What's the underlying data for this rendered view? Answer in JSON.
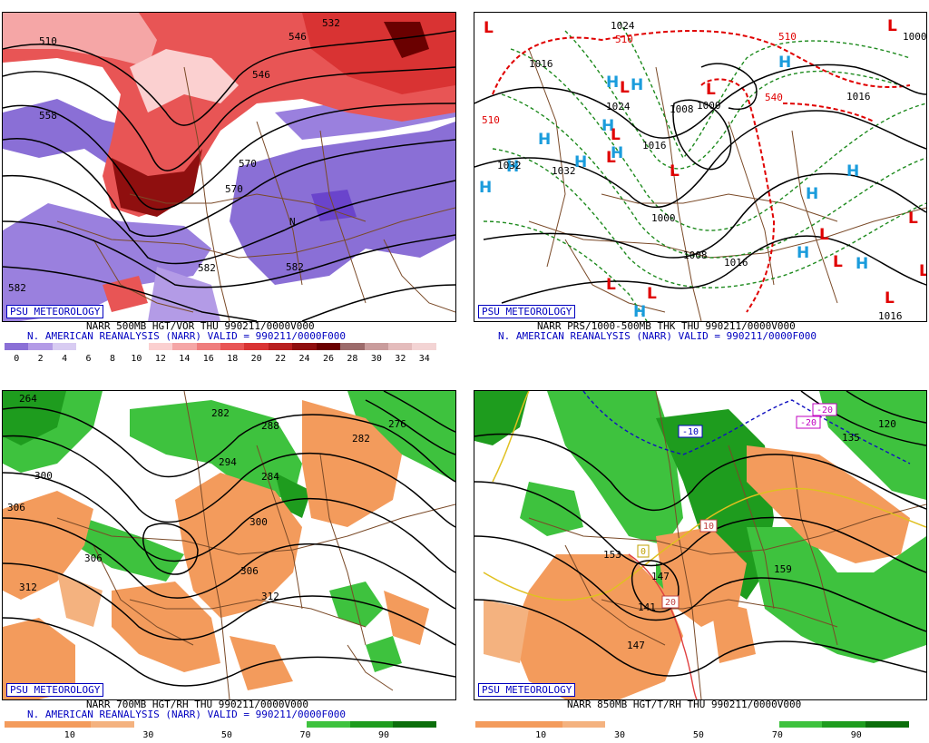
{
  "panels": [
    {
      "id": "vor500",
      "logo": "PSU METEOROLOGY",
      "caption1": "NARR 500MB HGT/VOR THU 990211/0000V000",
      "caption2": "N. AMERICAN REANALYSIS (NARR) VALID = 990211/0000F000",
      "colorbar": [
        "#8a6fd6",
        "#b39be6",
        "#d8ccf2",
        "#ffffff",
        "#ffffff",
        "#ffffff",
        "#fbd0d0",
        "#f5a6a6",
        "#ef7d7d",
        "#e85555",
        "#d93333",
        "#b81f1f",
        "#8f0f0f",
        "#6a0000",
        "#9c6b6b",
        "#c99c9c",
        "#e4bcbc",
        "#f3d4d4"
      ],
      "ticks": [
        "0",
        "2",
        "4",
        "6",
        "8",
        "10",
        "12",
        "14",
        "16",
        "18",
        "20",
        "22",
        "24",
        "26",
        "28",
        "30",
        "32",
        "34"
      ],
      "contour_labels": [
        "532",
        "510",
        "546",
        "558",
        "570",
        "570",
        "582",
        "582",
        "582",
        "546",
        "N"
      ]
    },
    {
      "id": "prs",
      "logo": "PSU METEOROLOGY",
      "caption1": "NARR PRS/1000-500MB THK THU 990211/0000V000",
      "caption2": "N. AMERICAN REANALYSIS (NARR) VALID = 990211/0000F000",
      "contour_labels": [
        "1024",
        "510",
        "1016",
        "1032",
        "1032",
        "1024",
        "1008",
        "1000",
        "1000",
        "1008",
        "1016",
        "1016",
        "1000",
        "1016",
        "510",
        "540",
        "510",
        "1024"
      ]
    },
    {
      "id": "rh700",
      "logo": "PSU METEOROLOGY",
      "caption1": "NARR 700MB HGT/RH THU 990211/0000V000",
      "caption2": "N. AMERICAN REANALYSIS (NARR) VALID = 990211/0000F000",
      "ticks": [
        "10",
        "30",
        "50",
        "70",
        "90"
      ],
      "contour_labels": [
        "264",
        "282",
        "288",
        "276",
        "282",
        "294",
        "300",
        "284",
        "300",
        "306",
        "306",
        "306",
        "312",
        "312"
      ]
    },
    {
      "id": "t850",
      "logo": "PSU METEOROLOGY",
      "caption1": "NARR 850MB HGT/T/RH THU 990211/0000V000",
      "ticks": [
        "10",
        "30",
        "50",
        "70",
        "90"
      ],
      "contour_labels": [
        "-10",
        "-20",
        "-20",
        "120",
        "135",
        "10",
        "20",
        "153",
        "147",
        "141",
        "147",
        "159",
        "0"
      ]
    }
  ],
  "rh_colorbar": {
    "colors": [
      "#f39b5c",
      "#f39b5c",
      "#f4b27f",
      "#ffffff",
      "#ffffff",
      "#ffffff",
      "#ffffff",
      "#3ec23e",
      "#1e9c1e",
      "#0b6e0b"
    ]
  },
  "colors": {
    "low_marker": "#e00000",
    "high_marker": "#1a9cdc",
    "border": "#7a4a28",
    "logo": "#0000c0"
  }
}
